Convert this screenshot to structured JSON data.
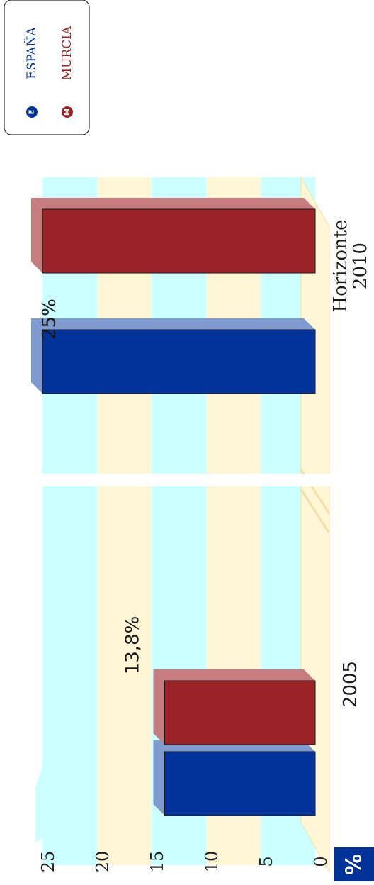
{
  "chart_data": {
    "type": "bar",
    "title": "",
    "xlabel": "",
    "ylabel": "",
    "unit_badge": "%",
    "categories": [
      "2005",
      "Horizonte 2010"
    ],
    "category_lines": [
      [
        "2005"
      ],
      [
        "Horizonte",
        "2010"
      ]
    ],
    "series": [
      {
        "name": "ESPAÑA",
        "badge": "E",
        "values": [
          13.8,
          25
        ],
        "color": "#02339a"
      },
      {
        "name": "MURCIA",
        "badge": "M",
        "values": [
          13.8,
          25
        ],
        "color": "#9b2328"
      }
    ],
    "data_labels": [
      "13,8%",
      "25%"
    ],
    "y_ticks": [
      0,
      5,
      10,
      15,
      20,
      25
    ],
    "ylim": [
      0,
      25
    ],
    "legend_position": "top-right",
    "orientation": "rotated-90-clockwise",
    "colors": {
      "band_cyan": "#ccffff",
      "band_cream": "#fff6d6",
      "badge_bg": "#003399",
      "espana": "#02339a",
      "murcia": "#9b2328"
    }
  }
}
